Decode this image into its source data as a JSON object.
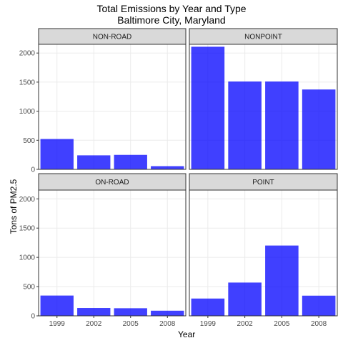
{
  "chart_data": {
    "type": "bar",
    "title": "Total Emissions by Year and Type",
    "subtitle": "Baltimore City, Maryland",
    "xlabel": "Year",
    "ylabel": "Tons of PM2.5",
    "categories": [
      "1999",
      "2002",
      "2005",
      "2008"
    ],
    "ylim": [
      0,
      2150
    ],
    "yticks": [
      0,
      500,
      1000,
      1500,
      2000
    ],
    "grid": true,
    "bar_color": "#0000ff",
    "panels": [
      {
        "name": "NON-ROAD",
        "values": [
          522,
          241,
          249,
          55
        ]
      },
      {
        "name": "NONPOINT",
        "values": [
          2108,
          1510,
          1510,
          1373
        ]
      },
      {
        "name": "ON-ROAD",
        "values": [
          347,
          134,
          130,
          88
        ]
      },
      {
        "name": "POINT",
        "values": [
          296,
          569,
          1202,
          345
        ]
      }
    ]
  }
}
